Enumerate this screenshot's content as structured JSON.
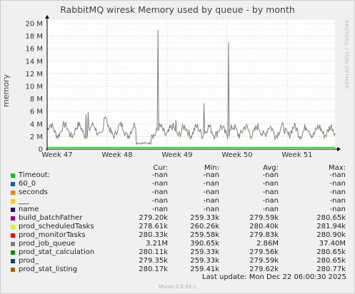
{
  "chart_data": {
    "type": "line",
    "title": "RabbitMQ wiresk Memory used by queue - by month",
    "ylabel": "memory",
    "ylim": [
      0,
      20000000
    ],
    "y_ticks": [
      "0",
      "2 M",
      "4 M",
      "6 M",
      "8 M",
      "10 M",
      "12 M",
      "14 M",
      "16 M",
      "18 M",
      "20 M"
    ],
    "x_ticks": [
      "Week 47",
      "Week 48",
      "Week 49",
      "Week 50",
      "Week 51"
    ],
    "grid": true,
    "series": [
      {
        "name": "prod_job_queue",
        "color": "#888888",
        "note": "about 3 M mean, with spikes to about 19 M near the start of week 49 and about 17 M mid week 50"
      },
      {
        "name": "others",
        "color": "#00cc00",
        "note": "flat near 280 k"
      }
    ]
  },
  "side_text": "RRDTOOL / TOBI OETIKER",
  "legend_headers": {
    "cur": "Cur:",
    "min": "Min:",
    "avg": "Avg:",
    "max": "Max:"
  },
  "legend": [
    {
      "name": "Timeout:",
      "color": "#00cc00",
      "cur": "-nan",
      "min": "-nan",
      "avg": "-nan",
      "max": "-nan"
    },
    {
      "name": "60_0",
      "color": "#0066b3",
      "cur": "-nan",
      "min": "-nan",
      "avg": "-nan",
      "max": "-nan"
    },
    {
      "name": "seconds",
      "color": "#ff8000",
      "cur": "-nan",
      "min": "-nan",
      "avg": "-nan",
      "max": "-nan"
    },
    {
      "name": "___",
      "color": "#ffcc00",
      "cur": "-nan",
      "min": "-nan",
      "avg": "-nan",
      "max": "-nan"
    },
    {
      "name": "name",
      "color": "#330099",
      "cur": "-nan",
      "min": "-nan",
      "avg": "-nan",
      "max": "-nan"
    },
    {
      "name": "build_batchFather",
      "color": "#990099",
      "cur": "279.20k",
      "min": "259.33k",
      "avg": "279.59k",
      "max": "280.65k"
    },
    {
      "name": "prod_scheduledTasks",
      "color": "#ccff00",
      "cur": "278.61k",
      "min": "260.26k",
      "avg": "280.40k",
      "max": "281.94k"
    },
    {
      "name": "prod_monitorTasks",
      "color": "#ff0000",
      "cur": "280.33k",
      "min": "259.58k",
      "avg": "279.83k",
      "max": "280.90k"
    },
    {
      "name": "prod_job_queue",
      "color": "#808080",
      "cur": "3.21M",
      "min": "390.65k",
      "avg": "2.86M",
      "max": "37.40M"
    },
    {
      "name": "prod_stat_calculation",
      "color": "#008f00",
      "cur": "280.11k",
      "min": "259.33k",
      "avg": "279.56k",
      "max": "280.65k"
    },
    {
      "name": "prod_",
      "color": "#00487d",
      "cur": "279.35k",
      "min": "259.33k",
      "avg": "279.59k",
      "max": "280.65k"
    },
    {
      "name": "prod_stat_listing",
      "color": "#b35a00",
      "cur": "280.17k",
      "min": "259.41k",
      "avg": "279.62k",
      "max": "280.77k"
    }
  ],
  "last_update": "Last update:  Mon Dec 22 06:00:30 2025",
  "munin_version": "Munin 2.0.33-1"
}
